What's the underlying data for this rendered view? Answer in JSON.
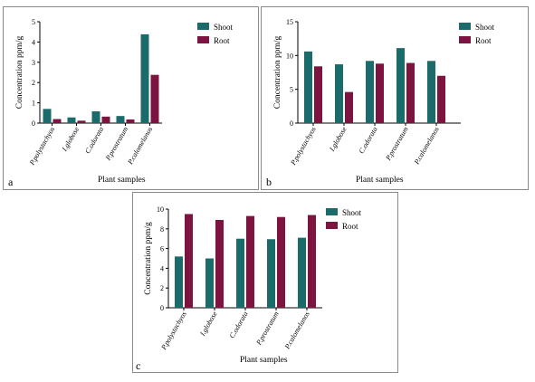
{
  "colors": {
    "shoot": "#1b6b6b",
    "root": "#7d1440"
  },
  "chart_data": [
    {
      "id": "a",
      "type": "bar",
      "panel_label": "a",
      "xlabel": "Plant samples",
      "ylabel": "Concentration ppm/g",
      "categories": [
        "P.polystachyos",
        "I.globose",
        "C.odorata",
        "P.prostratum",
        "P.calomelanos"
      ],
      "ylim": [
        0,
        5
      ],
      "yticks": [
        0,
        1,
        2,
        3,
        4,
        5
      ],
      "legend_position": "top-right",
      "grid": false,
      "series": [
        {
          "name": "Shoot",
          "color": "#1b6b6b",
          "values": [
            0.7,
            0.28,
            0.58,
            0.35,
            4.38
          ]
        },
        {
          "name": "Root",
          "color": "#7d1440",
          "values": [
            0.2,
            0.12,
            0.32,
            0.18,
            2.38
          ]
        }
      ]
    },
    {
      "id": "b",
      "type": "bar",
      "panel_label": "b",
      "xlabel": "Plant samples",
      "ylabel": "Concentration ppm/g",
      "categories": [
        "P.polystachyos",
        "I.globose",
        "C.odorata",
        "P.prostratum",
        "P.calomelanos"
      ],
      "ylim": [
        0,
        15
      ],
      "yticks": [
        0,
        5,
        10,
        15
      ],
      "legend_position": "top-right",
      "grid": false,
      "series": [
        {
          "name": "Shoot",
          "color": "#1b6b6b",
          "values": [
            10.6,
            8.7,
            9.2,
            11.1,
            9.2
          ]
        },
        {
          "name": "Root",
          "color": "#7d1440",
          "values": [
            8.4,
            4.6,
            8.8,
            8.9,
            7.0
          ]
        }
      ]
    },
    {
      "id": "c",
      "type": "bar",
      "panel_label": "c",
      "xlabel": "Plant samples",
      "ylabel": "Concentration ppm/g",
      "categories": [
        "P.polystachyos",
        "I.globose",
        "C.odorata",
        "P.prostratum",
        "P.calomelanos"
      ],
      "ylim": [
        0,
        10
      ],
      "yticks": [
        0,
        2,
        4,
        6,
        8,
        10
      ],
      "legend_position": "top-right",
      "grid": false,
      "series": [
        {
          "name": "Shoot",
          "color": "#1b6b6b",
          "values": [
            5.2,
            5.0,
            7.0,
            6.95,
            7.1
          ]
        },
        {
          "name": "Root",
          "color": "#7d1440",
          "values": [
            9.5,
            8.9,
            9.3,
            9.2,
            9.4
          ]
        }
      ]
    }
  ]
}
